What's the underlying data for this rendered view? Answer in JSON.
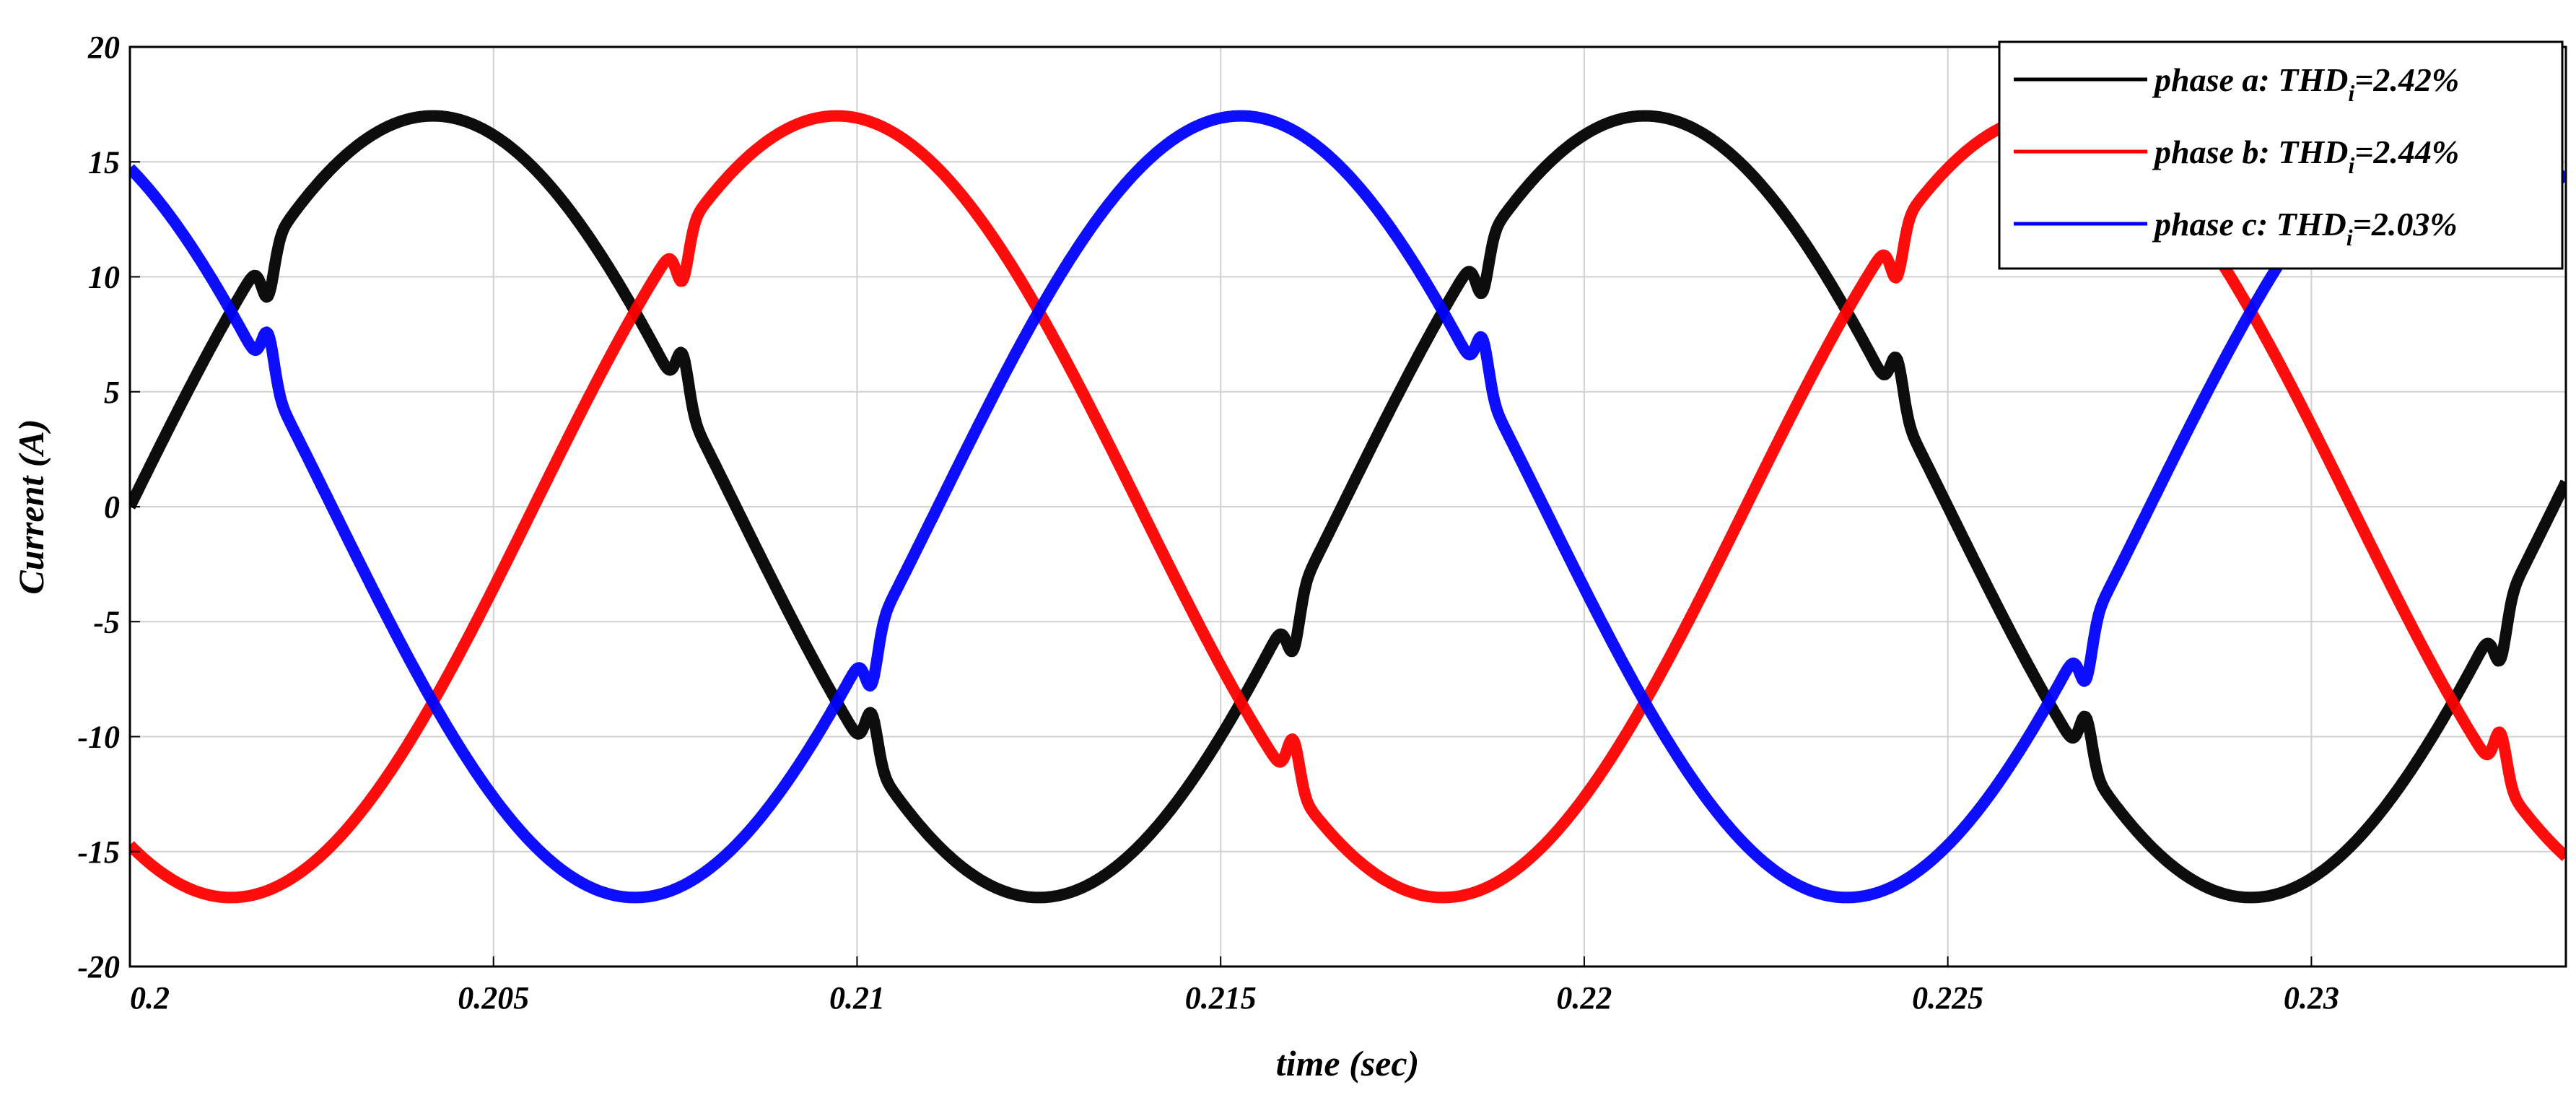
{
  "chart_data": {
    "type": "line",
    "xlabel": "time (sec)",
    "ylabel": "Current (A)",
    "xlim": [
      0.2,
      0.2335
    ],
    "ylim": [
      -20,
      20
    ],
    "xticks": [
      0.2,
      0.205,
      0.21,
      0.215,
      0.22,
      0.225,
      0.23
    ],
    "xtick_labels": [
      "0.2",
      "0.205",
      "0.21",
      "0.215",
      "0.22",
      "0.225",
      "0.23"
    ],
    "yticks": [
      -20,
      -15,
      -10,
      -5,
      0,
      5,
      10,
      15,
      20
    ],
    "ytick_labels": [
      "-20",
      "-15",
      "-10",
      "-5",
      "0",
      "5",
      "10",
      "15",
      "20"
    ],
    "grid": true,
    "legend_position": "top-right",
    "waveform": {
      "amplitude_A": 17.0,
      "frequency_Hz": 60,
      "phase_shift_deg": [
        0,
        -120,
        120
      ]
    },
    "series": [
      {
        "name": "phase a",
        "legend_prefix": "phase a: THD",
        "legend_sub": "i",
        "legend_suffix": "=2.42%",
        "color": "#000000",
        "notches": [
          0.2019,
          0.2076,
          0.2102,
          0.216,
          0.2186,
          0.2243,
          0.2269,
          0.2326
        ]
      },
      {
        "name": "phase b",
        "legend_prefix": "phase b: THD",
        "legend_sub": "i",
        "legend_suffix": "=2.44%",
        "color": "#ff0000",
        "notches": [
          0.2076,
          0.216,
          0.2243,
          0.2326
        ]
      },
      {
        "name": "phase c",
        "legend_prefix": "phase c: THD",
        "legend_sub": "i",
        "legend_suffix": "=2.03%",
        "color": "#0000ff",
        "notches": [
          0.2019,
          0.2102,
          0.2186,
          0.2269
        ]
      }
    ]
  }
}
